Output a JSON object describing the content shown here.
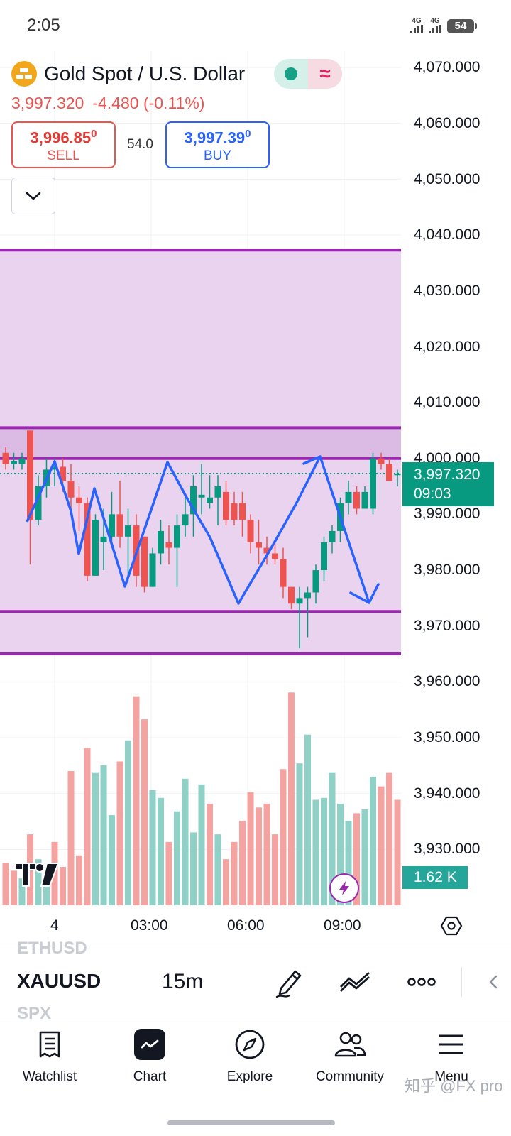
{
  "status_bar": {
    "time": "2:05",
    "signal_1": "4G",
    "signal_2": "4G",
    "battery": "54"
  },
  "symbol": {
    "title": "Gold Spot / U.S. Dollar",
    "icon": "gold-bars-icon",
    "price": "3,997.320",
    "change": "-4.480",
    "change_pct": "(-0.11%)",
    "market_status_icon": "market-open-dot-icon",
    "realtime_icon": "wave-icon"
  },
  "trade": {
    "sell_price_main": "3,996.85",
    "sell_price_small": "0",
    "sell_label": "SELL",
    "spread": "54.0",
    "buy_price_main": "3,997.39",
    "buy_price_small": "0",
    "buy_label": "BUY"
  },
  "colors": {
    "up": "#089981",
    "down": "#ef5350",
    "volume_up": "#8fd1c6",
    "volume_down": "#f5a3a0",
    "zone_fill": "#e8d1ee",
    "zone_line": "#9c27b0",
    "drawing": "#2962ff"
  },
  "chart_data": {
    "type": "candlestick",
    "symbol": "XAUUSD",
    "interval": "15m",
    "y_axis_ticks": [
      "4,070.000",
      "4,060.000",
      "4,050.000",
      "4,040.000",
      "4,030.000",
      "4,020.000",
      "4,010.000",
      "4,000.000",
      "3,990.000",
      "3,980.000",
      "3,970.000",
      "3,960.000",
      "3,950.000",
      "3,940.000",
      "3,930.000"
    ],
    "ylim": [
      3923,
      4072
    ],
    "x_axis_ticks": [
      "4",
      "03:00",
      "06:00",
      "09:00"
    ],
    "last_price": "3,997.320",
    "countdown": "09:03",
    "volume_last": "1.62 K",
    "candles": [
      [
        4001,
        4002,
        3998,
        3999
      ],
      [
        3999,
        4001,
        3998,
        3999.5
      ],
      [
        3999,
        4001,
        3998,
        4000
      ],
      [
        4005,
        4005,
        3981,
        3989
      ],
      [
        3989,
        3997,
        3988,
        3995
      ],
      [
        3995,
        4000,
        3993,
        3998
      ],
      [
        3998,
        4000,
        3995,
        3998.5
      ],
      [
        3998.5,
        4000,
        3994,
        3996
      ],
      [
        3996,
        3999,
        3991,
        3993
      ],
      [
        3993,
        3995,
        3987,
        3992
      ],
      [
        3992,
        3993,
        3978,
        3979
      ],
      [
        3979,
        3990,
        3979,
        3989
      ],
      [
        3985,
        3991,
        3980,
        3986
      ],
      [
        3986,
        3994,
        3984,
        3990
      ],
      [
        3990,
        3996,
        3984,
        3986
      ],
      [
        3986,
        3991,
        3978,
        3988
      ],
      [
        3988,
        3990,
        3977,
        3979
      ],
      [
        3986,
        3986,
        3976,
        3977
      ],
      [
        3977,
        3984,
        3977,
        3983
      ],
      [
        3983,
        3989,
        3981,
        3987
      ],
      [
        3985,
        3988,
        3981,
        3984
      ],
      [
        3984,
        3990,
        3977,
        3988
      ],
      [
        3988,
        3993,
        3986,
        3990
      ],
      [
        3990,
        3997,
        3986,
        3995
      ],
      [
        3993,
        3999,
        3990,
        3993.5
      ],
      [
        3992,
        3997,
        3991,
        3993
      ],
      [
        3993,
        3997,
        3988,
        3995
      ],
      [
        3994,
        3996,
        3988,
        3989
      ],
      [
        3992,
        3994,
        3988,
        3989
      ],
      [
        3992,
        3994,
        3986,
        3989
      ],
      [
        3989,
        3990,
        3983,
        3985
      ],
      [
        3985,
        3989,
        3981,
        3984
      ],
      [
        3984,
        3986,
        3981,
        3983
      ],
      [
        3983,
        3985,
        3981,
        3982
      ],
      [
        3982,
        3984,
        3975,
        3977
      ],
      [
        3977,
        3977,
        3973,
        3974
      ],
      [
        3974,
        3977,
        3966,
        3975
      ],
      [
        3975,
        3977,
        3968,
        3976
      ],
      [
        3976,
        3981,
        3974,
        3980
      ],
      [
        3980,
        3986,
        3978,
        3985
      ],
      [
        3985,
        3988,
        3983,
        3987
      ],
      [
        3987,
        3993,
        3985,
        3992
      ],
      [
        3992,
        3996,
        3990,
        3994
      ],
      [
        3994,
        3995,
        3990,
        3991
      ],
      [
        3991,
        3995,
        3991,
        3994
      ],
      [
        3991,
        4001,
        3990,
        4000
      ],
      [
        4000,
        4001,
        3998,
        3999
      ],
      [
        3999,
        4000,
        3996,
        3996
      ],
      [
        3997,
        3998,
        3995,
        3997.3
      ]
    ],
    "volumes": [
      22,
      18,
      14,
      37,
      24,
      12,
      33,
      20,
      70,
      26,
      82,
      69,
      73,
      47,
      75,
      86,
      109,
      97,
      60,
      56,
      33,
      49,
      66,
      38,
      63,
      53,
      37,
      24,
      33,
      44,
      59,
      51,
      53,
      37,
      71,
      111,
      74,
      89,
      55,
      56,
      69,
      53,
      44,
      48,
      50,
      67,
      62,
      69,
      55
    ],
    "volume_up": [
      false,
      false,
      true,
      false,
      true,
      true,
      false,
      false,
      false,
      false,
      false,
      true,
      true,
      true,
      false,
      true,
      false,
      false,
      true,
      true,
      false,
      true,
      true,
      true,
      true,
      false,
      true,
      false,
      false,
      false,
      false,
      false,
      false,
      false,
      false,
      false,
      true,
      true,
      true,
      true,
      true,
      true,
      true,
      false,
      true,
      true,
      false,
      false,
      false
    ],
    "zones": [
      {
        "top": 4037.3,
        "bottom": 4005.5
      },
      {
        "top": 4005.5,
        "bottom": 4000.0
      },
      {
        "top": 4000.0,
        "bottom": 3972.6
      },
      {
        "top": 3972.6,
        "bottom": 3965.0
      }
    ],
    "zone_lines": [
      4037.3,
      4005.5,
      4000.0,
      3972.6,
      3965.0
    ]
  },
  "toolbar": {
    "ghost_above": "ETHUSD",
    "symbol": "XAUUSD",
    "ghost_below": "SPX",
    "interval": "15m"
  },
  "nav": [
    {
      "label": "Watchlist",
      "icon": "watchlist-icon"
    },
    {
      "label": "Chart",
      "icon": "chart-icon"
    },
    {
      "label": "Explore",
      "icon": "compass-icon"
    },
    {
      "label": "Community",
      "icon": "community-icon"
    },
    {
      "label": "Menu",
      "icon": "menu-icon"
    }
  ],
  "watermark": "知乎 @FX pro"
}
